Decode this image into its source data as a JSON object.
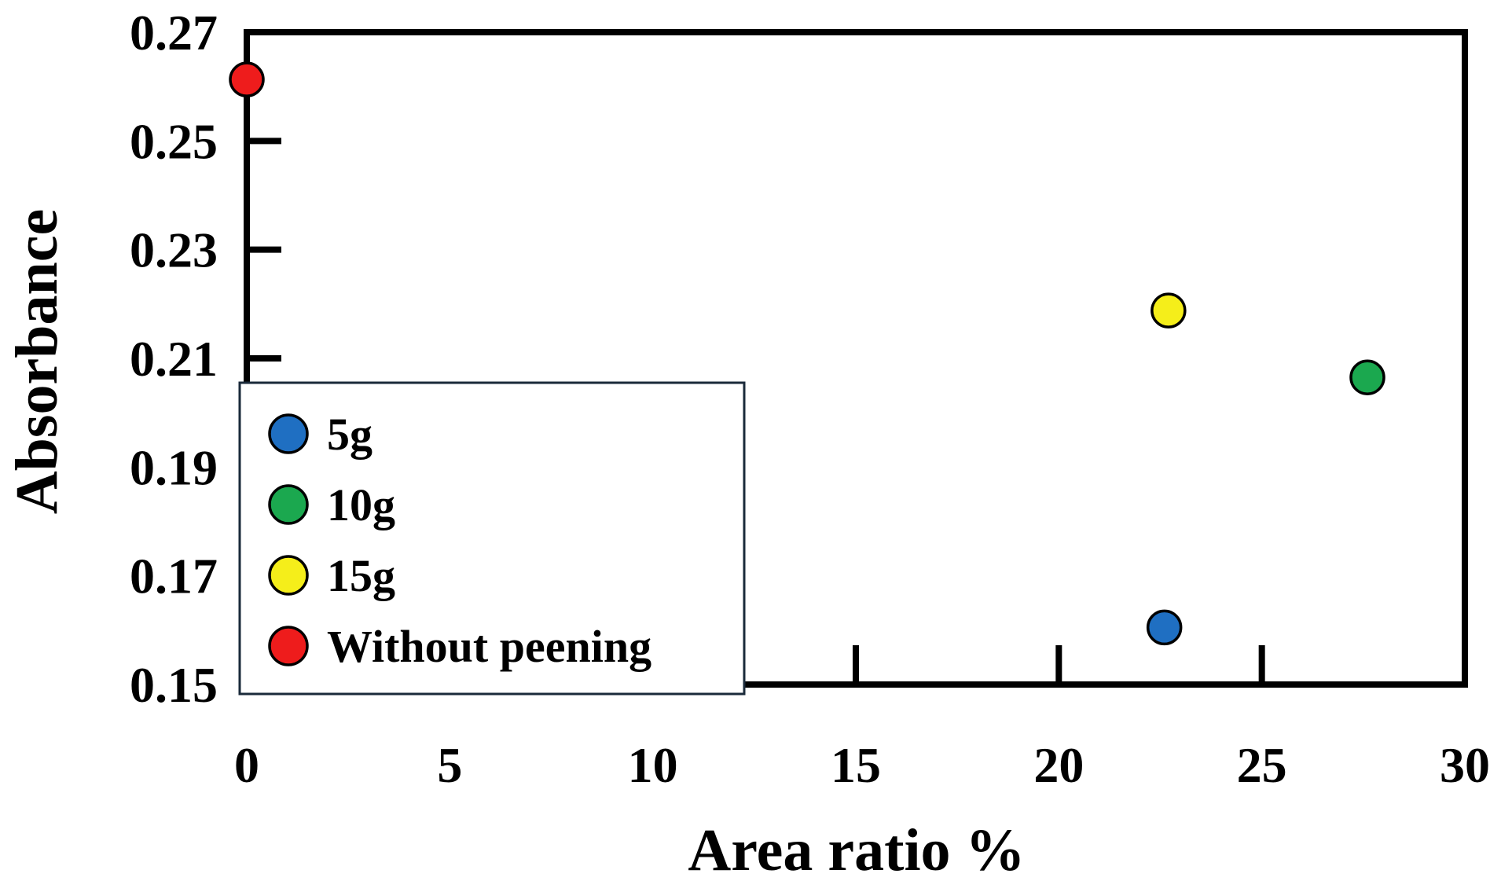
{
  "chart_data": {
    "type": "scatter",
    "title": "",
    "xlabel": "Area ratio %",
    "ylabel": "Absorbance",
    "xlim": [
      0,
      30
    ],
    "ylim": [
      0.15,
      0.27
    ],
    "xticks": [
      0,
      5,
      10,
      15,
      20,
      25,
      30
    ],
    "xtick_labels": [
      "0",
      "5",
      "10",
      "15",
      "20",
      "25",
      "30"
    ],
    "yticks": [
      0.15,
      0.17,
      0.19,
      0.21,
      0.23,
      0.25,
      0.27
    ],
    "ytick_labels": [
      "0.15",
      "0.17",
      "0.19",
      "0.21",
      "0.23",
      "0.25",
      "0.27"
    ],
    "grid": false,
    "legend_position": "bottom-left",
    "series": [
      {
        "name": "5g",
        "color": "#1F6FC2",
        "x": [
          22.6
        ],
        "y": [
          0.1605
        ]
      },
      {
        "name": "10g",
        "color": "#1BA84F",
        "x": [
          27.6
        ],
        "y": [
          0.2065
        ]
      },
      {
        "name": "15g",
        "color": "#F5EE1A",
        "x": [
          22.7
        ],
        "y": [
          0.2188
        ]
      },
      {
        "name": "Without peening",
        "color": "#EE1C1C",
        "x": [
          0
        ],
        "y": [
          0.2613
        ]
      }
    ]
  }
}
